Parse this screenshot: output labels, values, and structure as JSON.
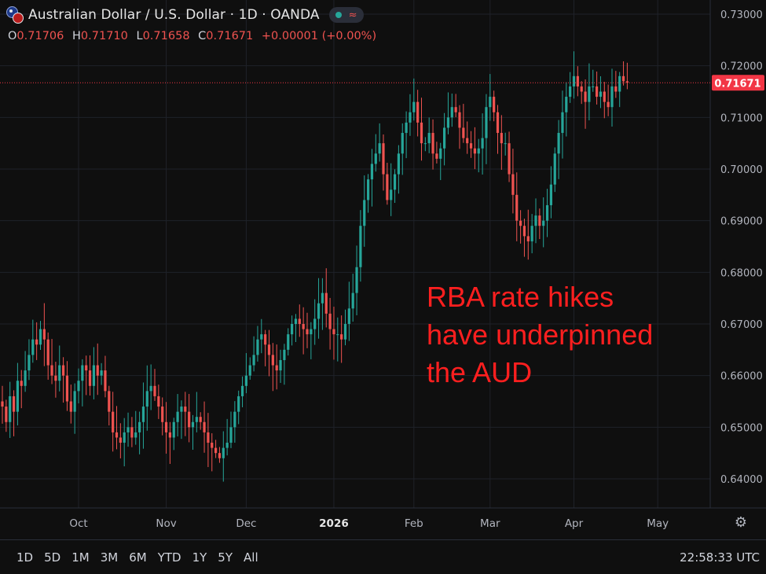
{
  "header": {
    "title": "Australian Dollar / U.S. Dollar · 1D · OANDA",
    "symbol_icon": "aud-usd-flags-icon",
    "status_icons": [
      "market-open-dot-icon",
      "delayed-data-wave-icon"
    ],
    "ohlc": {
      "open_label": "O",
      "open": "0.71706",
      "high_label": "H",
      "high": "0.71710",
      "low_label": "L",
      "low": "0.71658",
      "close_label": "C",
      "close": "0.71671",
      "change": "+0.00001 (+0.00%)"
    }
  },
  "annotation": {
    "lines": [
      "RBA rate hikes",
      "have underpinned",
      "the AUD"
    ]
  },
  "time_ranges": [
    "1D",
    "5D",
    "1M",
    "3M",
    "6M",
    "YTD",
    "1Y",
    "5Y",
    "All"
  ],
  "clock": "22:58:33 UTC",
  "settings_icon": "gear-icon",
  "colors": {
    "background": "#0f0f0f",
    "up": "#26a69a",
    "down": "#ef5350",
    "annotation": "#ff1f1f",
    "price_label_bg": "#f23645"
  },
  "chart_data": {
    "type": "candlestick",
    "symbol": "AUD/USD",
    "interval": "1D",
    "ylim": [
      0.634,
      0.733
    ],
    "y_ticks": [
      "0.64000",
      "0.65000",
      "0.66000",
      "0.67000",
      "0.68000",
      "0.69000",
      "0.70000",
      "0.71000",
      "0.72000",
      "0.73000"
    ],
    "x_ticks": [
      {
        "label": "Oct",
        "i": 20
      },
      {
        "label": "Nov",
        "i": 43
      },
      {
        "label": "Dec",
        "i": 64
      },
      {
        "label": "2026",
        "i": 87
      },
      {
        "label": "Feb",
        "i": 108
      },
      {
        "label": "Mar",
        "i": 128
      },
      {
        "label": "Apr",
        "i": 150
      },
      {
        "label": "May",
        "i": 172
      }
    ],
    "last_price": "0.71671",
    "last_price_value": 0.71671,
    "grid": true,
    "candles_close": [
      0.654,
      0.651,
      0.656,
      0.653,
      0.659,
      0.658,
      0.661,
      0.664,
      0.667,
      0.666,
      0.669,
      0.667,
      0.662,
      0.66,
      0.659,
      0.662,
      0.66,
      0.655,
      0.653,
      0.657,
      0.659,
      0.662,
      0.661,
      0.658,
      0.662,
      0.66,
      0.661,
      0.657,
      0.653,
      0.649,
      0.648,
      0.647,
      0.649,
      0.65,
      0.648,
      0.649,
      0.651,
      0.654,
      0.657,
      0.658,
      0.656,
      0.654,
      0.651,
      0.649,
      0.648,
      0.651,
      0.653,
      0.654,
      0.653,
      0.65,
      0.651,
      0.652,
      0.651,
      0.649,
      0.647,
      0.646,
      0.645,
      0.644,
      0.646,
      0.647,
      0.65,
      0.653,
      0.656,
      0.658,
      0.66,
      0.662,
      0.664,
      0.667,
      0.668,
      0.666,
      0.664,
      0.662,
      0.661,
      0.663,
      0.665,
      0.668,
      0.67,
      0.671,
      0.67,
      0.669,
      0.668,
      0.669,
      0.671,
      0.674,
      0.676,
      0.672,
      0.669,
      0.668,
      0.668,
      0.667,
      0.67,
      0.673,
      0.676,
      0.681,
      0.689,
      0.694,
      0.698,
      0.701,
      0.703,
      0.705,
      0.699,
      0.694,
      0.696,
      0.699,
      0.703,
      0.707,
      0.709,
      0.711,
      0.713,
      0.709,
      0.705,
      0.705,
      0.707,
      0.703,
      0.702,
      0.704,
      0.708,
      0.71,
      0.712,
      0.711,
      0.708,
      0.706,
      0.705,
      0.704,
      0.703,
      0.704,
      0.706,
      0.712,
      0.714,
      0.711,
      0.707,
      0.705,
      0.705,
      0.699,
      0.695,
      0.69,
      0.689,
      0.687,
      0.686,
      0.689,
      0.691,
      0.689,
      0.69,
      0.693,
      0.697,
      0.703,
      0.707,
      0.711,
      0.714,
      0.716,
      0.718,
      0.716,
      0.715,
      0.713,
      0.716,
      0.716,
      0.714,
      0.715,
      0.713,
      0.712,
      0.716,
      0.715,
      0.718,
      0.717,
      0.71671
    ]
  }
}
